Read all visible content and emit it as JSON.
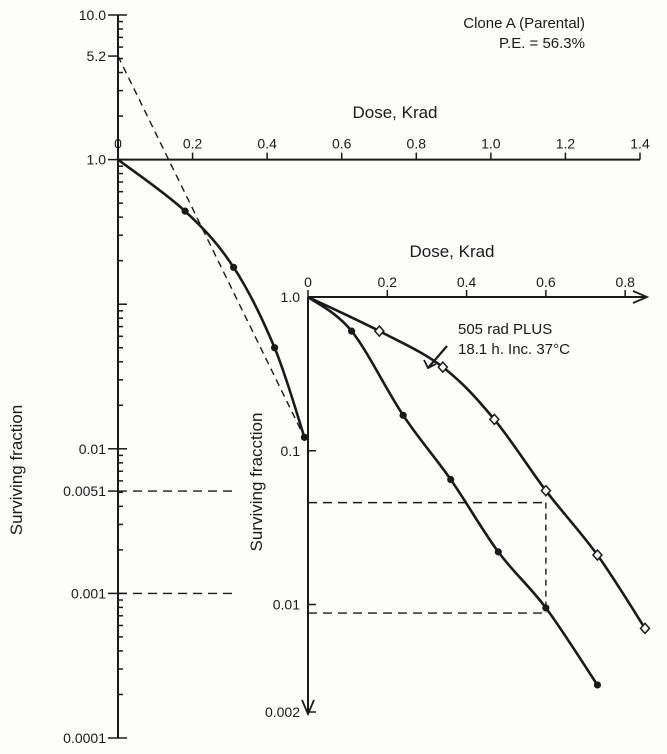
{
  "chart_data": [
    {
      "type": "line",
      "yscale": "log",
      "title": "",
      "annotation_lines": [
        "Clone A (Parental)",
        "P.E. = 56.3%"
      ],
      "xlabel": "Dose, Krad",
      "ylabel": "Surviving fraction",
      "x_tick_labels": [
        "0",
        "0.2",
        "0.4",
        "0.6",
        "0.8",
        "1.0",
        "1.2",
        "1.4"
      ],
      "y_tick_labels": [
        "10.0",
        "5.2",
        "1.0",
        "0.01",
        "0.0051",
        "0.001",
        "0.0001"
      ],
      "xlim": [
        0,
        1.4
      ],
      "ylim": [
        0.0001,
        10
      ],
      "extrapolation": {
        "x": [
          0,
          0.5
        ],
        "y": [
          5.2,
          0.012
        ]
      },
      "series": [
        {
          "marker": "filled-circle",
          "x": [
            0,
            0.18,
            0.31,
            0.42,
            0.5
          ],
          "y": [
            1.0,
            0.44,
            0.18,
            0.05,
            0.012
          ]
        }
      ],
      "reference_lines": [
        {
          "label": "0.0051",
          "y": 0.0051
        },
        {
          "label": "0.001",
          "y": 0.001
        }
      ]
    },
    {
      "type": "line",
      "yscale": "log",
      "xlabel": "Dose, Krad",
      "ylabel": "Surviving fracction",
      "x_tick_labels": [
        "0",
        "0.2",
        "0.4",
        "0.6",
        "0.8"
      ],
      "y_tick_labels": [
        "1.0",
        "0.1",
        "0.01",
        "0.002"
      ],
      "xlim": [
        0,
        0.85
      ],
      "ylim": [
        0.002,
        1
      ],
      "annotation_lines": [
        "505 rad PLUS",
        "18.1 h. Inc. 37°C"
      ],
      "series": [
        {
          "marker": "open-diamond",
          "x": [
            0,
            0.18,
            0.34,
            0.47,
            0.6,
            0.73,
            0.85
          ],
          "y": [
            1.0,
            0.6,
            0.35,
            0.16,
            0.055,
            0.021,
            0.007
          ]
        },
        {
          "marker": "filled-circle",
          "x": [
            0,
            0.11,
            0.24,
            0.36,
            0.48,
            0.6,
            0.73
          ],
          "y": [
            1.0,
            0.6,
            0.17,
            0.065,
            0.022,
            0.0095,
            0.003
          ]
        }
      ],
      "crossing_points": [
        {
          "x": 0.6,
          "y": 0.046
        },
        {
          "x": 0.6,
          "y": 0.0088
        }
      ]
    }
  ]
}
